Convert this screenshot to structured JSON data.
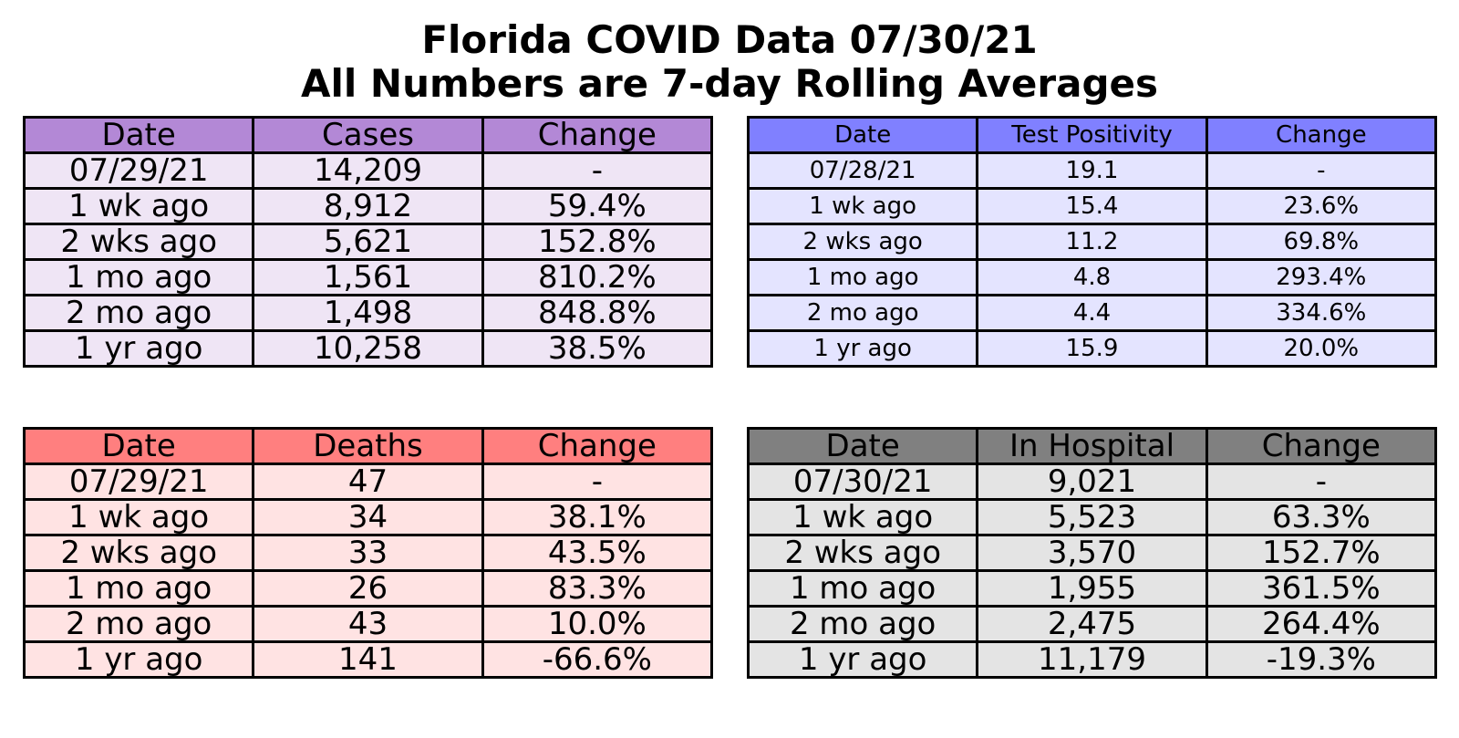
{
  "title": {
    "line1": "Florida COVID Data 07/30/21",
    "line2": "All Numbers are 7-day Rolling Averages"
  },
  "chart_data": [
    {
      "type": "table",
      "id": "cases",
      "header_color": "#b388d6",
      "body_color": "#efe5f5",
      "columns": [
        "Date",
        "Cases",
        "Change"
      ],
      "rows": [
        [
          "07/29/21",
          "14,209",
          "-"
        ],
        [
          "1 wk ago",
          "8,912",
          "59.4%"
        ],
        [
          "2 wks ago",
          "5,621",
          "152.8%"
        ],
        [
          "1 mo ago",
          "1,561",
          "810.2%"
        ],
        [
          "2 mo ago",
          "1,498",
          "848.8%"
        ],
        [
          "1 yr ago",
          "10,258",
          "38.5%"
        ]
      ]
    },
    {
      "type": "table",
      "id": "positivity",
      "header_color": "#8080ff",
      "body_color": "#e4e4ff",
      "columns": [
        "Date",
        "Test Positivity",
        "Change"
      ],
      "rows": [
        [
          "07/28/21",
          "19.1",
          "-"
        ],
        [
          "1 wk ago",
          "15.4",
          "23.6%"
        ],
        [
          "2 wks ago",
          "11.2",
          "69.8%"
        ],
        [
          "1 mo ago",
          "4.8",
          "293.4%"
        ],
        [
          "2 mo ago",
          "4.4",
          "334.6%"
        ],
        [
          "1 yr ago",
          "15.9",
          "20.0%"
        ]
      ]
    },
    {
      "type": "table",
      "id": "deaths",
      "header_color": "#ff7f7f",
      "body_color": "#ffe3e3",
      "columns": [
        "Date",
        "Deaths",
        "Change"
      ],
      "rows": [
        [
          "07/29/21",
          "47",
          "-"
        ],
        [
          "1 wk ago",
          "34",
          "38.1%"
        ],
        [
          "2 wks ago",
          "33",
          "43.5%"
        ],
        [
          "1 mo ago",
          "26",
          "83.3%"
        ],
        [
          "2 mo ago",
          "43",
          "10.0%"
        ],
        [
          "1 yr ago",
          "141",
          "-66.6%"
        ]
      ]
    },
    {
      "type": "table",
      "id": "hospital",
      "header_color": "#808080",
      "body_color": "#e4e4e4",
      "columns": [
        "Date",
        "In Hospital",
        "Change"
      ],
      "rows": [
        [
          "07/30/21",
          "9,021",
          "-"
        ],
        [
          "1 wk ago",
          "5,523",
          "63.3%"
        ],
        [
          "2 wks ago",
          "3,570",
          "152.7%"
        ],
        [
          "1 mo ago",
          "1,955",
          "361.5%"
        ],
        [
          "2 mo ago",
          "2,475",
          "264.4%"
        ],
        [
          "1 yr ago",
          "11,179",
          "-19.3%"
        ]
      ]
    }
  ]
}
